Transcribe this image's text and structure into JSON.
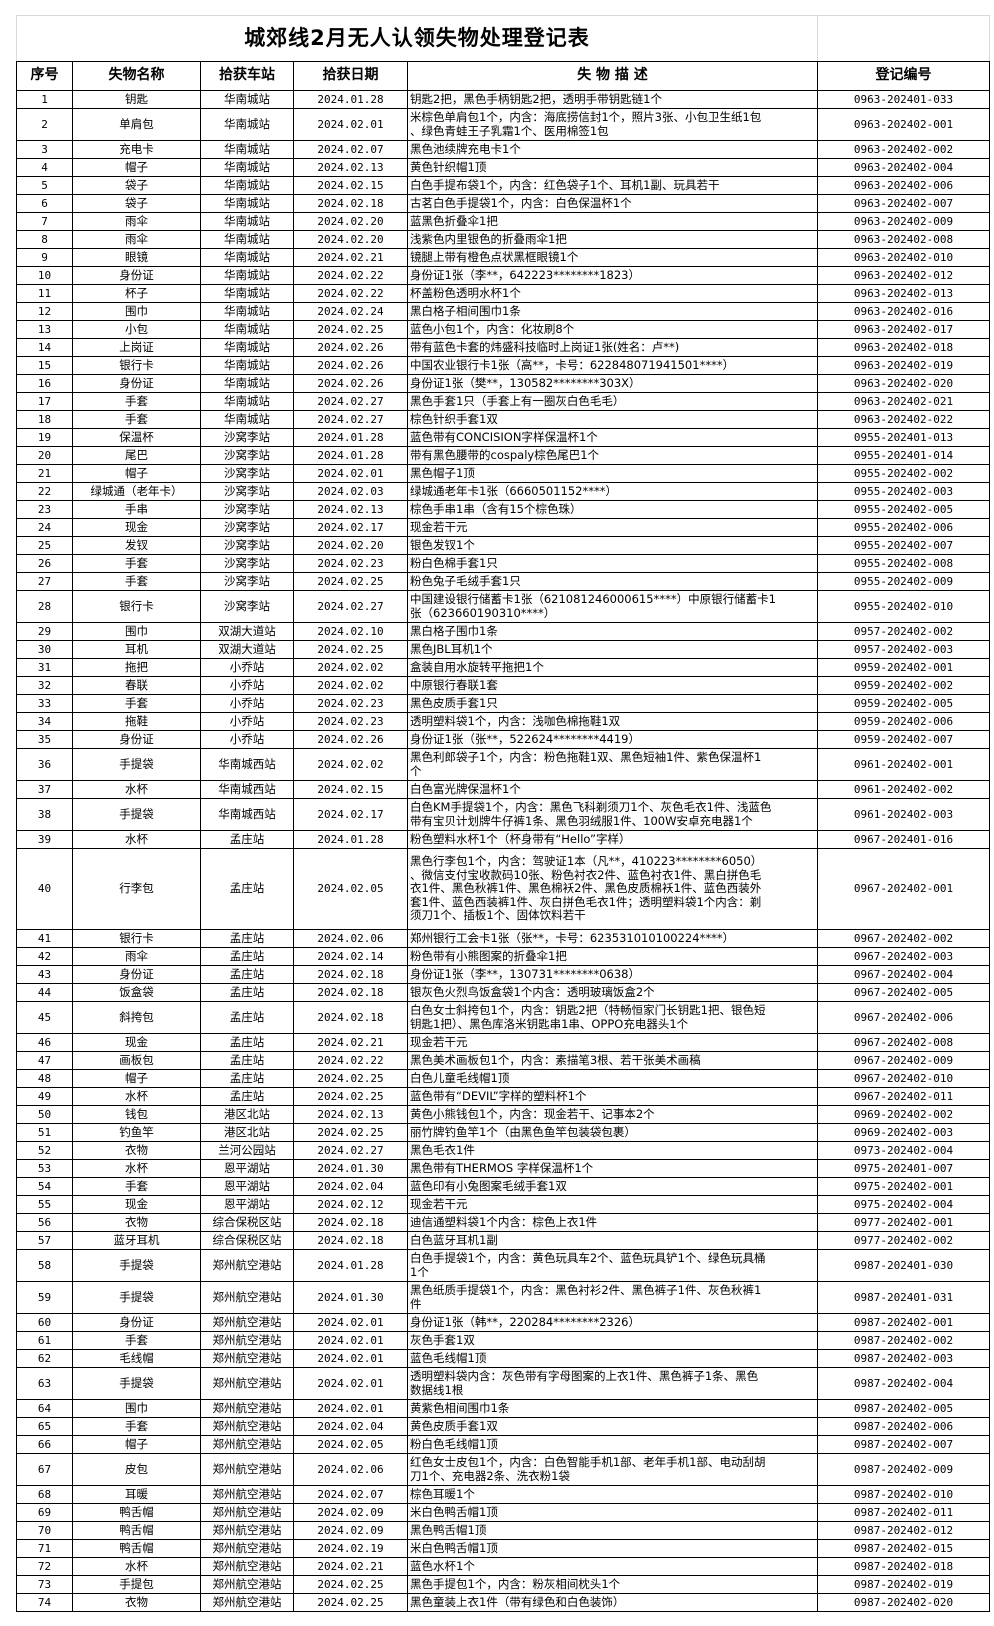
{
  "title": "城郊线2月无人认领失物处理登记表",
  "headers": [
    "序号",
    "失物名称",
    "拾获车站",
    "拾获日期",
    "失 物 描 述",
    "登记编号"
  ],
  "rows": [
    [
      "1",
      "钥匙",
      "华南城站",
      "2024.01.28",
      "钥匙2把，黑色手柄钥匙2把，透明手带钥匙链1个",
      "0963-202401-033"
    ],
    [
      "2",
      "单肩包",
      "华南城站",
      "2024.02.01",
      "米棕色单肩包1个，内含：海底捞信封1个，照片3张、小包卫生纸1包\n、绿色青蛙王子乳霜1个、医用棉签1包",
      "0963-202402-001"
    ],
    [
      "3",
      "充电卡",
      "华南城站",
      "2024.02.07",
      "黑色池续牌充电卡1个",
      "0963-202402-002"
    ],
    [
      "4",
      "帽子",
      "华南城站",
      "2024.02.13",
      "黄色针织帽1顶",
      "0963-202402-004"
    ],
    [
      "5",
      "袋子",
      "华南城站",
      "2024.02.15",
      "白色手提布袋1个，内含：红色袋子1个、耳机1副、玩具若干",
      "0963-202402-006"
    ],
    [
      "6",
      "袋子",
      "华南城站",
      "2024.02.18",
      "古茗白色手提袋1个，内含：白色保温杯1个",
      "0963-202402-007"
    ],
    [
      "7",
      "雨伞",
      "华南城站",
      "2024.02.20",
      "蓝黑色折叠伞1把",
      "0963-202402-009"
    ],
    [
      "8",
      "雨伞",
      "华南城站",
      "2024.02.20",
      "浅紫色内里银色的折叠雨伞1把",
      "0963-202402-008"
    ],
    [
      "9",
      "眼镜",
      "华南城站",
      "2024.02.21",
      "镜腿上带有橙色点状黑框眼镜1个",
      "0963-202402-010"
    ],
    [
      "10",
      "身份证",
      "华南城站",
      "2024.02.22",
      "身份证1张（李**，642223********1823）",
      "0963-202402-012"
    ],
    [
      "11",
      "杯子",
      "华南城站",
      "2024.02.22",
      "杯盖粉色透明水杯1个",
      "0963-202402-013"
    ],
    [
      "12",
      "围巾",
      "华南城站",
      "2024.02.24",
      "黑白格子相间围巾1条",
      "0963-202402-016"
    ],
    [
      "13",
      "小包",
      "华南城站",
      "2024.02.25",
      "蓝色小包1个，内含：化妆刷8个",
      "0963-202402-017"
    ],
    [
      "14",
      "上岗证",
      "华南城站",
      "2024.02.26",
      "带有蓝色卡套的炜盛科技临时上岗证1张(姓名：卢**)",
      "0963-202402-018"
    ],
    [
      "15",
      "银行卡",
      "华南城站",
      "2024.02.26",
      "中国农业银行卡1张（高**，卡号：622848071941501****）",
      "0963-202402-019"
    ],
    [
      "16",
      "身份证",
      "华南城站",
      "2024.02.26",
      "身份证1张（樊**，130582********303X）",
      "0963-202402-020"
    ],
    [
      "17",
      "手套",
      "华南城站",
      "2024.02.27",
      "黑色手套1只（手套上有一圈灰白色毛毛）",
      "0963-202402-021"
    ],
    [
      "18",
      "手套",
      "华南城站",
      "2024.02.27",
      "棕色针织手套1双",
      "0963-202402-022"
    ],
    [
      "19",
      "保温杯",
      "沙窝李站",
      "2024.01.28",
      "蓝色带有CONCISION字样保温杯1个",
      "0955-202401-013"
    ],
    [
      "20",
      "尾巴",
      "沙窝李站",
      "2024.01.28",
      "带有黑色腰带的cospaly棕色尾巴1个",
      "0955-202401-014"
    ],
    [
      "21",
      "帽子",
      "沙窝李站",
      "2024.02.01",
      "黑色帽子1顶",
      "0955-202402-002"
    ],
    [
      "22",
      "绿城通（老年卡）",
      "沙窝李站",
      "2024.02.03",
      "绿城通老年卡1张（6660501152****）",
      "0955-202402-003"
    ],
    [
      "23",
      "手串",
      "沙窝李站",
      "2024.02.13",
      "棕色手串1串（含有15个棕色珠）",
      "0955-202402-005"
    ],
    [
      "24",
      "现金",
      "沙窝李站",
      "2024.02.17",
      "现金若干元",
      "0955-202402-006"
    ],
    [
      "25",
      "发钗",
      "沙窝李站",
      "2024.02.20",
      "银色发钗1个",
      "0955-202402-007"
    ],
    [
      "26",
      "手套",
      "沙窝李站",
      "2024.02.23",
      "粉白色棉手套1只",
      "0955-202402-008"
    ],
    [
      "27",
      "手套",
      "沙窝李站",
      "2024.02.25",
      "粉色兔子毛绒手套1只",
      "0955-202402-009"
    ],
    [
      "28",
      "银行卡",
      "沙窝李站",
      "2024.02.27",
      "中国建设银行储蓄卡1张（621081246000615****）中原银行储蓄卡1\n张（623660190310****）",
      "0955-202402-010"
    ],
    [
      "29",
      "围巾",
      "双湖大道站",
      "2024.02.10",
      "黑白格子围巾1条",
      "0957-202402-002"
    ],
    [
      "30",
      "耳机",
      "双湖大道站",
      "2024.02.25",
      "黑色JBL耳机1个",
      "0957-202402-003"
    ],
    [
      "31",
      "拖把",
      "小乔站",
      "2024.02.02",
      "盒装自用水旋转平拖把1个",
      "0959-202402-001"
    ],
    [
      "32",
      "春联",
      "小乔站",
      "2024.02.02",
      "中原银行春联1套",
      "0959-202402-002"
    ],
    [
      "33",
      "手套",
      "小乔站",
      "2024.02.23",
      "黑色皮质手套1只",
      "0959-202402-005"
    ],
    [
      "34",
      "拖鞋",
      "小乔站",
      "2024.02.23",
      "透明塑料袋1个，内含：浅咖色棉拖鞋1双",
      "0959-202402-006"
    ],
    [
      "35",
      "身份证",
      "小乔站",
      "2024.02.26",
      "身份证1张（张**，522624********4419）",
      "0959-202402-007"
    ],
    [
      "36",
      "手提袋",
      "华南城西站",
      "2024.02.02",
      "黑色利郎袋子1个，内含：粉色拖鞋1双、黑色短袖1件、紫色保温杯1\n个",
      "0961-202402-001"
    ],
    [
      "37",
      "水杯",
      "华南城西站",
      "2024.02.15",
      "白色富光牌保温杯1个",
      "0961-202402-002"
    ],
    [
      "38",
      "手提袋",
      "华南城西站",
      "2024.02.17",
      "白色KM手提袋1个，内含：黑色飞科剃须刀1个、灰色毛衣1件、浅蓝色\n带有宝贝计划牌牛仔裤1条、黑色羽绒服1件、100W安卓充电器1个",
      "0961-202402-003"
    ],
    [
      "39",
      "水杯",
      "孟庄站",
      "2024.01.28",
      "粉色塑料水杯1个（杯身带有“Hello”字样）",
      "0967-202401-016"
    ],
    [
      "40",
      "行李包",
      "孟庄站",
      "2024.02.05",
      "黑色行李包1个，内含：驾驶证1本（凡**，410223********6050）\n、微信支付宝收款码10张、粉色衬衣2件、蓝色衬衣1件、黑白拼色毛\n衣1件、黑色秋裤1件、黑色棉袄2件、黑色皮质棉袄1件、蓝色西装外\n套1件、蓝色西装裤1件、灰白拼色毛衣1件；透明塑料袋1个内含：剃\n须刀1个、插板1个、固体饮料若干",
      "0967-202402-001"
    ],
    [
      "41",
      "银行卡",
      "孟庄站",
      "2024.02.06",
      "郑州银行工会卡1张（张**，卡号：623531010100224****）",
      "0967-202402-002"
    ],
    [
      "42",
      "雨伞",
      "孟庄站",
      "2024.02.14",
      "粉色带有小熊图案的折叠伞1把",
      "0967-202402-003"
    ],
    [
      "43",
      "身份证",
      "孟庄站",
      "2024.02.18",
      "身份证1张（李**，130731********0638）",
      "0967-202402-004"
    ],
    [
      "44",
      "饭盒袋",
      "孟庄站",
      "2024.02.18",
      "银灰色火烈鸟饭盒袋1个内含：透明玻璃饭盒2个",
      "0967-202402-005"
    ],
    [
      "45",
      "斜挎包",
      "孟庄站",
      "2024.02.18",
      "白色女士斜挎包1个，内含：钥匙2把（特畅恒家门长钥匙1把、银色短\n钥匙1把）、黑色库洛米钥匙串1串、OPPO充电器头1个",
      "0967-202402-006"
    ],
    [
      "46",
      "现金",
      "孟庄站",
      "2024.02.21",
      "现金若干元",
      "0967-202402-008"
    ],
    [
      "47",
      "画板包",
      "孟庄站",
      "2024.02.22",
      "黑色美术画板包1个，内含：素描笔3根、若干张美术画稿",
      "0967-202402-009"
    ],
    [
      "48",
      "帽子",
      "孟庄站",
      "2024.02.25",
      "白色儿童毛线帽1顶",
      "0967-202402-010"
    ],
    [
      "49",
      "水杯",
      "孟庄站",
      "2024.02.25",
      "蓝色带有“DEVIL”字样的塑料杯1个",
      "0967-202402-011"
    ],
    [
      "50",
      "钱包",
      "港区北站",
      "2024.02.13",
      "黄色小熊钱包1个，内含：现金若干、记事本2个",
      "0969-202402-002"
    ],
    [
      "51",
      "钓鱼竿",
      "港区北站",
      "2024.02.25",
      "丽竹牌钓鱼竿1个（由黑色鱼竿包装袋包裹）",
      "0969-202402-003"
    ],
    [
      "52",
      "衣物",
      "兰河公园站",
      "2024.02.27",
      "黑色毛衣1件",
      "0973-202402-004"
    ],
    [
      "53",
      "水杯",
      "恩平湖站",
      "2024.01.30",
      "黑色带有THERMOS 字样保温杯1个",
      "0975-202401-007"
    ],
    [
      "54",
      "手套",
      "恩平湖站",
      "2024.02.04",
      "蓝色印有小兔图案毛绒手套1双",
      "0975-202402-001"
    ],
    [
      "55",
      "现金",
      "恩平湖站",
      "2024.02.12",
      "现金若干元",
      "0975-202402-004"
    ],
    [
      "56",
      "衣物",
      "综合保税区站",
      "2024.02.18",
      "迪信通塑料袋1个内含：棕色上衣1件",
      "0977-202402-001"
    ],
    [
      "57",
      "蓝牙耳机",
      "综合保税区站",
      "2024.02.18",
      "白色蓝牙耳机1副",
      "0977-202402-002"
    ],
    [
      "58",
      "手提袋",
      "郑州航空港站",
      "2024.01.28",
      "白色手提袋1个，内含：黄色玩具车2个、蓝色玩具铲1个、绿色玩具桶\n1个",
      "0987-202401-030"
    ],
    [
      "59",
      "手提袋",
      "郑州航空港站",
      "2024.01.30",
      "黑色纸质手提袋1个，内含：黑色衬衫2件、黑色裤子1件、灰色秋裤1\n件",
      "0987-202401-031"
    ],
    [
      "60",
      "身份证",
      "郑州航空港站",
      "2024.02.01",
      "身份证1张（韩**，220284********2326）",
      "0987-202402-001"
    ],
    [
      "61",
      "手套",
      "郑州航空港站",
      "2024.02.01",
      "灰色手套1双",
      "0987-202402-002"
    ],
    [
      "62",
      "毛线帽",
      "郑州航空港站",
      "2024.02.01",
      "蓝色毛线帽1顶",
      "0987-202402-003"
    ],
    [
      "63",
      "手提袋",
      "郑州航空港站",
      "2024.02.01",
      "透明塑料袋内含：灰色带有字母图案的上衣1件、黑色裤子1条、黑色\n数据线1根",
      "0987-202402-004"
    ],
    [
      "64",
      "围巾",
      "郑州航空港站",
      "2024.02.01",
      "黄紫色相间围巾1条",
      "0987-202402-005"
    ],
    [
      "65",
      "手套",
      "郑州航空港站",
      "2024.02.04",
      "黄色皮质手套1双",
      "0987-202402-006"
    ],
    [
      "66",
      "帽子",
      "郑州航空港站",
      "2024.02.05",
      "粉白色毛线帽1顶",
      "0987-202402-007"
    ],
    [
      "67",
      "皮包",
      "郑州航空港站",
      "2024.02.06",
      "红色女士皮包1个，内含：白色智能手机1部、老年手机1部、电动刮胡\n刀1个、充电器2条、洗衣粉1袋",
      "0987-202402-009"
    ],
    [
      "68",
      "耳暖",
      "郑州航空港站",
      "2024.02.07",
      "棕色耳暖1个",
      "0987-202402-010"
    ],
    [
      "69",
      "鸭舌帽",
      "郑州航空港站",
      "2024.02.09",
      "米白色鸭舌帽1顶",
      "0987-202402-011"
    ],
    [
      "70",
      "鸭舌帽",
      "郑州航空港站",
      "2024.02.09",
      "黑色鸭舌帽1顶",
      "0987-202402-012"
    ],
    [
      "71",
      "鸭舌帽",
      "郑州航空港站",
      "2024.02.19",
      "米白色鸭舌帽1顶",
      "0987-202402-015"
    ],
    [
      "72",
      "水杯",
      "郑州航空港站",
      "2024.02.21",
      "蓝色水杯1个",
      "0987-202402-018"
    ],
    [
      "73",
      "手提包",
      "郑州航空港站",
      "2024.02.25",
      "黑色手提包1个，内含：粉灰相间枕头1个",
      "0987-202402-019"
    ],
    [
      "74",
      "衣物",
      "郑州航空港站",
      "2024.02.25",
      "黑色童装上衣1件（带有绿色和白色装饰）",
      "0987-202402-020"
    ]
  ]
}
